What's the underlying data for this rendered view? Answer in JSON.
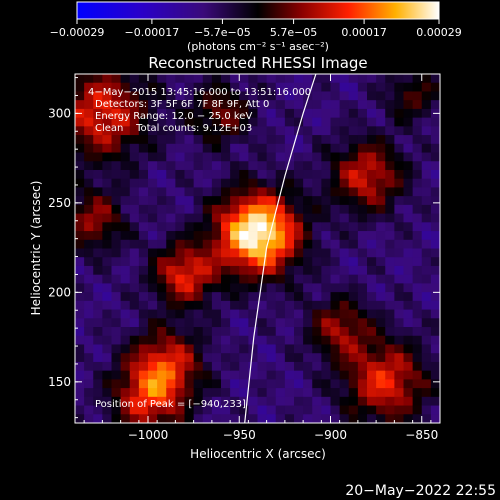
{
  "chart_data": {
    "type": "heatmap",
    "title": "Reconstructed RHESSI Image",
    "xlabel": "Heliocentric X (arcsec)",
    "ylabel": "Heliocentric Y (arcsec)",
    "xlim": [
      -1040,
      -840
    ],
    "ylim": [
      127,
      322
    ],
    "xticks": [
      -1000,
      -950,
      -900,
      -850
    ],
    "xtick_labels": [
      "−1000",
      "−950",
      "−900",
      "−850"
    ],
    "yticks": [
      150,
      200,
      250,
      300
    ],
    "ytick_labels": [
      "150",
      "200",
      "250",
      "300"
    ],
    "colorbar": {
      "min": -0.00029,
      "max": 0.00029,
      "ticks": [
        -0.00029,
        -0.00017,
        -5.7e-05,
        5.7e-05,
        0.00017,
        0.00029
      ],
      "tick_labels": [
        "−0.00029",
        "−0.00017",
        "−5.7e−05",
        "5.7e−05",
        "0.00017",
        "0.00029"
      ],
      "label": "(photons cm⁻² s⁻¹ asec⁻²)"
    },
    "annotations": [
      "4−May−2015 13:45:16.000 to 13:51:16.000",
      "Detectors: 3F 5F 6F 7F 8F 9F, Att 0",
      "Energy Range: 12.0 − 25.0 keV",
      "Clean    Total counts: 9.12E+03"
    ],
    "peak_label": "Position of Peak = [−940,233]",
    "peak": {
      "x": -940,
      "y": 233
    },
    "grid_size": 40,
    "sources": [
      {
        "x": -940,
        "y": 233,
        "amp": 1.0,
        "sigma": 16
      },
      {
        "x": -980,
        "y": 210,
        "amp": 0.55,
        "sigma": 12
      },
      {
        "x": -1025,
        "y": 300,
        "amp": 0.55,
        "sigma": 18
      },
      {
        "x": -990,
        "y": 160,
        "amp": 0.5,
        "sigma": 14
      },
      {
        "x": -1000,
        "y": 140,
        "amp": 0.5,
        "sigma": 14
      },
      {
        "x": -870,
        "y": 150,
        "amp": 0.55,
        "sigma": 16
      },
      {
        "x": -880,
        "y": 265,
        "amp": 0.5,
        "sigma": 14
      },
      {
        "x": -895,
        "y": 180,
        "amp": 0.4,
        "sigma": 12
      },
      {
        "x": -1030,
        "y": 240,
        "amp": 0.4,
        "sigma": 12
      },
      {
        "x": -960,
        "y": 300,
        "amp": 0.35,
        "sigma": 12
      },
      {
        "x": -855,
        "y": 310,
        "amp": 0.3,
        "sigma": 10
      }
    ],
    "limb_curve": {
      "x": [
        -947,
        -942,
        -935,
        -925,
        -915,
        -908
      ],
      "y": [
        127,
        175,
        225,
        265,
        300,
        322
      ]
    }
  },
  "footer": {
    "date": "20−May−2022 22:55"
  }
}
